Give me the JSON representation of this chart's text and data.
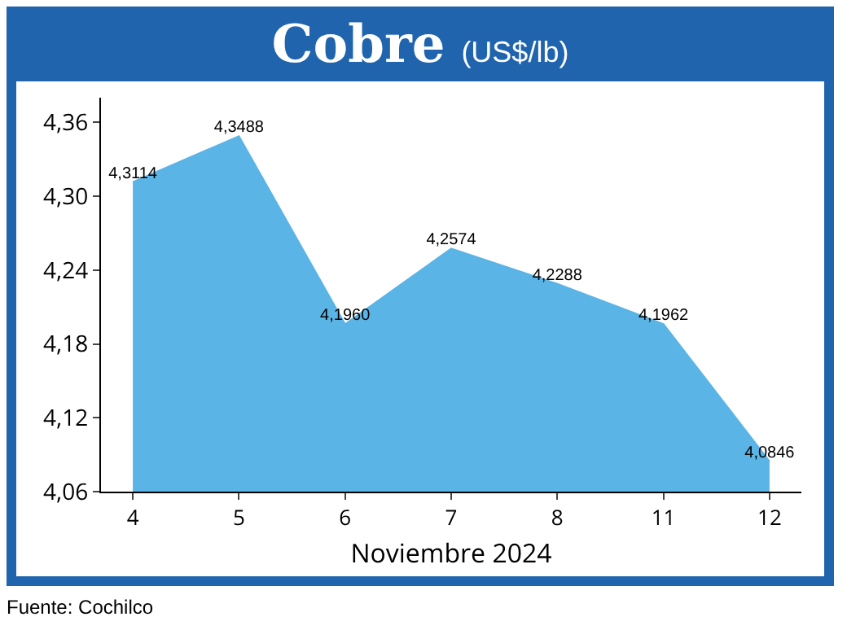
{
  "chart_data": {
    "type": "area",
    "title": "Cobre",
    "subtitle": "(US$/lb)",
    "xlabel": "Noviembre 2024",
    "categories": [
      "4",
      "5",
      "6",
      "7",
      "8",
      "11",
      "12"
    ],
    "values": [
      4.3114,
      4.3488,
      4.196,
      4.2574,
      4.2288,
      4.1962,
      4.0846
    ],
    "value_labels": [
      "4,3114",
      "4,3488",
      "4,1960",
      "4,2574",
      "4,2288",
      "4,1962",
      "4,0846"
    ],
    "color": "#5bb4e6",
    "ylim": [
      4.06,
      4.38
    ],
    "yticks": [
      {
        "value": 4.06,
        "label": "4,06"
      },
      {
        "value": 4.12,
        "label": "4,12"
      },
      {
        "value": 4.18,
        "label": "4,18"
      },
      {
        "value": 4.24,
        "label": "4,24"
      },
      {
        "value": 4.3,
        "label": "4,30"
      },
      {
        "value": 4.36,
        "label": "4,36"
      }
    ],
    "grid": false,
    "annotations": [
      "Fuente: Cochilco"
    ]
  }
}
